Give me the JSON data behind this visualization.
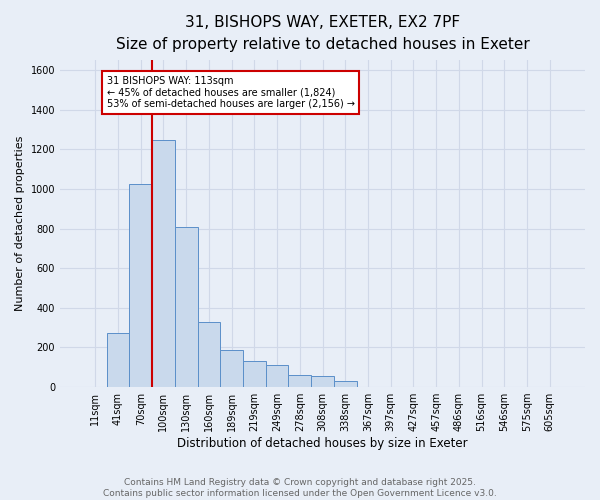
{
  "title_line1": "31, BISHOPS WAY, EXETER, EX2 7PF",
  "title_line2": "Size of property relative to detached houses in Exeter",
  "xlabel": "Distribution of detached houses by size in Exeter",
  "ylabel": "Number of detached properties",
  "categories": [
    "11sqm",
    "41sqm",
    "70sqm",
    "100sqm",
    "130sqm",
    "160sqm",
    "189sqm",
    "219sqm",
    "249sqm",
    "278sqm",
    "308sqm",
    "338sqm",
    "367sqm",
    "397sqm",
    "427sqm",
    "457sqm",
    "486sqm",
    "516sqm",
    "546sqm",
    "575sqm",
    "605sqm"
  ],
  "values": [
    0,
    275,
    1025,
    1250,
    810,
    330,
    185,
    130,
    110,
    60,
    55,
    30,
    0,
    0,
    0,
    0,
    0,
    0,
    0,
    0,
    0
  ],
  "bar_color": "#c9d9ec",
  "bar_edge_color": "#5b8fc9",
  "ylim": [
    0,
    1650
  ],
  "yticks": [
    0,
    200,
    400,
    600,
    800,
    1000,
    1200,
    1400,
    1600
  ],
  "annotation_text": "31 BISHOPS WAY: 113sqm\n← 45% of detached houses are smaller (1,824)\n53% of semi-detached houses are larger (2,156) →",
  "annotation_box_color": "#ffffff",
  "annotation_box_edge": "#cc0000",
  "vline_color": "#cc0000",
  "vline_pos": 2.5,
  "background_color": "#e8eef7",
  "plot_bg_color": "#e8eef7",
  "footer_line1": "Contains HM Land Registry data © Crown copyright and database right 2025.",
  "footer_line2": "Contains public sector information licensed under the Open Government Licence v3.0.",
  "grid_color": "#d0d8e8",
  "title1_fontsize": 11,
  "title2_fontsize": 9,
  "ylabel_fontsize": 8,
  "xlabel_fontsize": 8.5,
  "tick_fontsize": 7,
  "ann_fontsize": 7,
  "footer_fontsize": 6.5,
  "footer_color": "#666666"
}
